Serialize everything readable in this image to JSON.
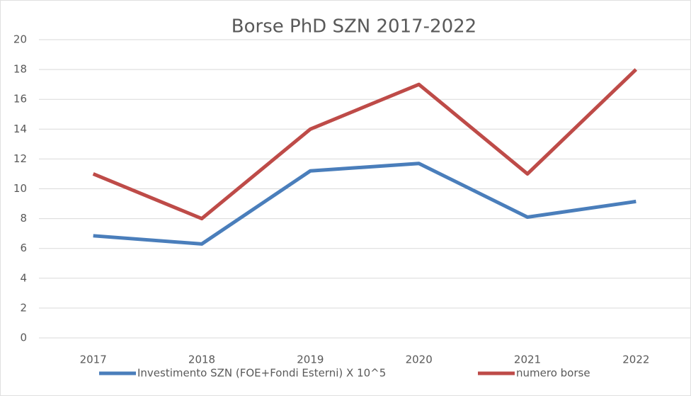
{
  "chart_data": {
    "type": "line",
    "title": "Borse PhD SZN 2017-2022",
    "categories": [
      "2017",
      "2018",
      "2019",
      "2020",
      "2021",
      "2022"
    ],
    "series": [
      {
        "name": "Investimento SZN (FOE+Fondi Esterni) X 10^5",
        "color": "#4a7ebb",
        "values": [
          6.85,
          6.3,
          11.2,
          11.7,
          8.1,
          9.15
        ]
      },
      {
        "name": "numero borse",
        "color": "#be4b48",
        "values": [
          11,
          8,
          14,
          17,
          11,
          18
        ]
      }
    ],
    "ylim": [
      0,
      20
    ],
    "yticks": [
      0,
      2,
      4,
      6,
      8,
      10,
      12,
      14,
      16,
      18,
      20
    ],
    "grid": true,
    "legend": "bottom"
  }
}
